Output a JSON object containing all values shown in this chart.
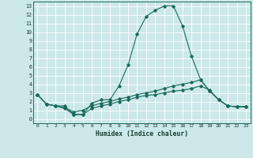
{
  "title": "",
  "xlabel": "Humidex (Indice chaleur)",
  "ylabel": "",
  "bg_color": "#cce8e8",
  "line_color": "#1a6b5a",
  "grid_color": "#b0d8d8",
  "xlim": [
    -0.5,
    23.5
  ],
  "ylim": [
    -0.5,
    13.5
  ],
  "xticks": [
    0,
    1,
    2,
    3,
    4,
    5,
    6,
    7,
    8,
    9,
    10,
    11,
    12,
    13,
    14,
    15,
    16,
    17,
    18,
    19,
    20,
    21,
    22,
    23
  ],
  "yticks": [
    0,
    1,
    2,
    3,
    4,
    5,
    6,
    7,
    8,
    9,
    10,
    11,
    12,
    13
  ],
  "series": [
    {
      "x": [
        0,
        1,
        2,
        3,
        4,
        5,
        6,
        7,
        8,
        9,
        10,
        11,
        12,
        13,
        14,
        15,
        16,
        17,
        18,
        19,
        20,
        21,
        22,
        23
      ],
      "y": [
        2.8,
        1.7,
        1.5,
        1.5,
        0.5,
        0.5,
        1.8,
        2.2,
        2.2,
        3.8,
        6.2,
        9.8,
        11.8,
        12.5,
        13.0,
        13.0,
        10.7,
        7.2,
        4.5,
        3.2,
        2.2,
        1.5,
        1.4,
        1.4
      ]
    },
    {
      "x": [
        0,
        1,
        2,
        3,
        4,
        5,
        6,
        7,
        8,
        9,
        10,
        11,
        12,
        13,
        14,
        15,
        16,
        17,
        18,
        19,
        20,
        21,
        22,
        23
      ],
      "y": [
        2.8,
        1.7,
        1.5,
        1.3,
        0.8,
        1.0,
        1.5,
        1.8,
        2.0,
        2.3,
        2.5,
        2.8,
        3.0,
        3.2,
        3.5,
        3.8,
        4.0,
        4.2,
        4.5,
        3.2,
        2.2,
        1.5,
        1.4,
        1.4
      ]
    },
    {
      "x": [
        0,
        1,
        2,
        3,
        4,
        5,
        6,
        7,
        8,
        9,
        10,
        11,
        12,
        13,
        14,
        15,
        16,
        17,
        18,
        19,
        20,
        21,
        22,
        23
      ],
      "y": [
        2.8,
        1.7,
        1.5,
        1.2,
        0.5,
        0.5,
        1.2,
        1.5,
        1.7,
        2.0,
        2.2,
        2.5,
        2.7,
        2.8,
        3.0,
        3.2,
        3.3,
        3.5,
        3.8,
        3.3,
        2.2,
        1.5,
        1.4,
        1.4
      ]
    }
  ]
}
